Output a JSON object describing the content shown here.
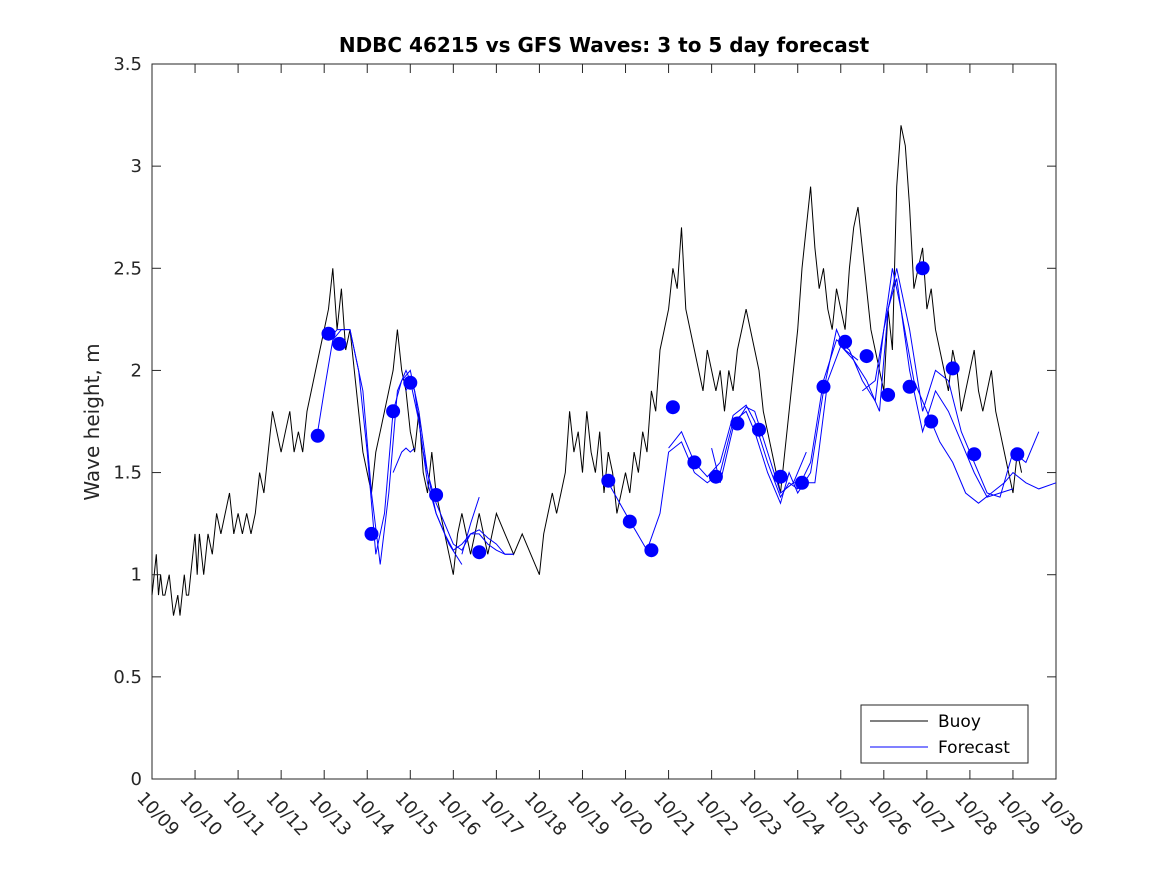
{
  "chart_data": {
    "type": "line",
    "title": "NDBC 46215 vs GFS Waves: 3 to 5 day forecast",
    "xlabel": "",
    "ylabel": "Wave height, m",
    "xlim": [
      0,
      21
    ],
    "ylim": [
      0,
      3.5
    ],
    "xticks": [
      0,
      1,
      2,
      3,
      4,
      5,
      6,
      7,
      8,
      9,
      10,
      11,
      12,
      13,
      14,
      15,
      16,
      17,
      18,
      19,
      20,
      21
    ],
    "xtick_labels": [
      "10/09",
      "10/10",
      "10/11",
      "10/12",
      "10/13",
      "10/14",
      "10/15",
      "10/16",
      "10/17",
      "10/18",
      "10/19",
      "10/20",
      "10/21",
      "10/22",
      "10/23",
      "10/24",
      "10/25",
      "10/26",
      "10/27",
      "10/28",
      "10/29",
      "10/30"
    ],
    "yticks": [
      0,
      0.5,
      1,
      1.5,
      2,
      2.5,
      3,
      3.5
    ],
    "ytick_labels": [
      "0",
      "0.5",
      "1",
      "1.5",
      "2",
      "2.5",
      "3",
      "3.5"
    ],
    "legend": {
      "placement": "bottom-right",
      "entries": [
        "Buoy",
        "Forecast"
      ]
    },
    "colors": {
      "buoy": "#000000",
      "forecast": "#0000ff",
      "axis": "#262626"
    },
    "series": [
      {
        "name": "Buoy",
        "x": [
          0.0,
          0.05,
          0.1,
          0.15,
          0.2,
          0.25,
          0.3,
          0.4,
          0.5,
          0.6,
          0.65,
          0.7,
          0.75,
          0.8,
          0.85,
          0.9,
          1.0,
          1.05,
          1.1,
          1.15,
          1.2,
          1.3,
          1.4,
          1.5,
          1.6,
          1.7,
          1.8,
          1.9,
          2.0,
          2.1,
          2.2,
          2.3,
          2.4,
          2.5,
          2.6,
          2.7,
          2.8,
          2.9,
          3.0,
          3.1,
          3.2,
          3.3,
          3.4,
          3.5,
          3.6,
          3.7,
          3.8,
          3.9,
          4.0,
          4.1,
          4.2,
          4.3,
          4.4,
          4.5,
          4.6,
          4.7,
          4.8,
          4.9,
          5.0,
          5.1,
          5.2,
          5.3,
          5.4,
          5.5,
          5.6,
          5.7,
          5.8,
          5.9,
          6.0,
          6.1,
          6.2,
          6.3,
          6.4,
          6.5,
          6.6,
          6.7,
          6.8,
          6.9,
          7.0,
          7.1,
          7.2,
          7.3,
          7.4,
          7.5,
          7.6,
          7.7,
          7.8,
          7.9,
          8.0,
          8.2,
          8.4,
          8.6,
          8.8,
          9.0,
          9.1,
          9.2,
          9.3,
          9.4,
          9.5,
          9.6,
          9.7,
          9.8,
          9.9,
          10.0,
          10.1,
          10.2,
          10.3,
          10.4,
          10.5,
          10.6,
          10.7,
          10.8,
          10.9,
          11.0,
          11.1,
          11.2,
          11.3,
          11.4,
          11.5,
          11.6,
          11.7,
          11.8,
          11.9,
          12.0,
          12.1,
          12.2,
          12.3,
          12.4,
          12.5,
          12.6,
          12.7,
          12.8,
          12.9,
          13.0,
          13.1,
          13.2,
          13.3,
          13.4,
          13.5,
          13.6,
          13.7,
          13.8,
          13.9,
          14.0,
          14.1,
          14.2,
          14.3,
          14.4,
          14.5,
          14.6,
          14.7,
          14.8,
          14.9,
          15.0,
          15.1,
          15.2,
          15.3,
          15.4,
          15.5,
          15.6,
          15.7,
          15.8,
          15.9,
          16.0,
          16.1,
          16.2,
          16.3,
          16.4,
          16.5,
          16.6,
          16.7,
          16.8,
          16.9,
          17.0,
          17.1,
          17.2,
          17.3,
          17.4,
          17.5,
          17.6,
          17.7,
          17.8,
          17.9,
          18.0,
          18.1,
          18.2,
          18.3,
          18.4,
          18.5,
          18.6,
          18.7,
          18.8,
          18.9,
          19.0,
          19.1,
          19.2,
          19.3,
          19.4,
          19.5,
          19.6,
          19.7,
          19.8,
          19.9,
          20.0,
          20.1,
          20.2
        ],
        "values": [
          0.9,
          1.0,
          1.1,
          0.9,
          1.0,
          0.9,
          0.9,
          1.0,
          0.8,
          0.9,
          0.8,
          0.9,
          1.0,
          0.9,
          0.9,
          1.0,
          1.2,
          1.0,
          1.2,
          1.1,
          1.0,
          1.2,
          1.1,
          1.3,
          1.2,
          1.3,
          1.4,
          1.2,
          1.3,
          1.2,
          1.3,
          1.2,
          1.3,
          1.5,
          1.4,
          1.6,
          1.8,
          1.7,
          1.6,
          1.7,
          1.8,
          1.6,
          1.7,
          1.6,
          1.8,
          1.9,
          2.0,
          2.1,
          2.2,
          2.3,
          2.5,
          2.2,
          2.4,
          2.1,
          2.2,
          2.0,
          1.8,
          1.6,
          1.5,
          1.4,
          1.6,
          1.7,
          1.8,
          1.9,
          2.0,
          2.2,
          2.0,
          1.9,
          1.7,
          1.6,
          1.8,
          1.5,
          1.4,
          1.6,
          1.4,
          1.3,
          1.2,
          1.1,
          1.0,
          1.2,
          1.3,
          1.2,
          1.1,
          1.2,
          1.3,
          1.2,
          1.1,
          1.2,
          1.3,
          1.2,
          1.1,
          1.2,
          1.1,
          1.0,
          1.2,
          1.3,
          1.4,
          1.3,
          1.4,
          1.5,
          1.8,
          1.6,
          1.7,
          1.5,
          1.8,
          1.6,
          1.5,
          1.7,
          1.4,
          1.6,
          1.5,
          1.3,
          1.4,
          1.5,
          1.4,
          1.6,
          1.5,
          1.7,
          1.6,
          1.9,
          1.8,
          2.1,
          2.2,
          2.3,
          2.5,
          2.4,
          2.7,
          2.3,
          2.2,
          2.1,
          2.0,
          1.9,
          2.1,
          2.0,
          1.9,
          2.0,
          1.8,
          2.0,
          1.9,
          2.1,
          2.2,
          2.3,
          2.2,
          2.1,
          2.0,
          1.8,
          1.7,
          1.6,
          1.5,
          1.4,
          1.6,
          1.8,
          2.0,
          2.2,
          2.5,
          2.7,
          2.9,
          2.6,
          2.4,
          2.5,
          2.3,
          2.2,
          2.4,
          2.3,
          2.2,
          2.5,
          2.7,
          2.8,
          2.6,
          2.4,
          2.2,
          2.1,
          2.0,
          1.9,
          2.3,
          2.1,
          2.9,
          3.2,
          3.1,
          2.8,
          2.4,
          2.5,
          2.6,
          2.3,
          2.4,
          2.2,
          2.1,
          2.0,
          1.9,
          2.1,
          2.0,
          1.8,
          1.9,
          2.0,
          2.1,
          1.9,
          1.8,
          1.9,
          2.0,
          1.8,
          1.7,
          1.6,
          1.5,
          1.4,
          1.6,
          1.5
        ]
      },
      {
        "name": "Forecast",
        "runs": [
          {
            "x": [
              3.85,
              4.0,
              4.2,
              4.4,
              4.6,
              4.8,
              5.0,
              5.2,
              5.4,
              5.6,
              5.8,
              6.0,
              6.2,
              6.4,
              6.6,
              6.8,
              7.0,
              7.2,
              7.4,
              7.6,
              7.8,
              8.0,
              8.2,
              8.4
            ],
            "values": [
              1.7,
              1.9,
              2.15,
              2.2,
              2.2,
              2.0,
              1.6,
              1.1,
              1.3,
              1.8,
              1.95,
              2.0,
              1.8,
              1.5,
              1.35,
              1.25,
              1.15,
              1.12,
              1.2,
              1.22,
              1.18,
              1.15,
              1.1,
              1.1
            ]
          },
          {
            "x": [
              5.9,
              6.0,
              6.2,
              6.4,
              6.6,
              6.8,
              7.0,
              7.2,
              7.4,
              7.6,
              7.8,
              8.0,
              8.2,
              8.4
            ],
            "values": [
              1.9,
              1.95,
              1.75,
              1.45,
              1.3,
              1.2,
              1.12,
              1.15,
              1.2,
              1.2,
              1.15,
              1.12,
              1.1,
              1.1
            ]
          },
          {
            "x": [
              4.1,
              4.3,
              4.6,
              4.9,
              5.1,
              5.3,
              5.5,
              5.7,
              5.9,
              6.1,
              6.3,
              6.6,
              6.9,
              7.2
            ],
            "values": [
              2.15,
              2.2,
              2.2,
              1.9,
              1.4,
              1.05,
              1.4,
              1.9,
              2.0,
              1.9,
              1.6,
              1.3,
              1.15,
              1.05
            ]
          },
          {
            "x": [
              5.6,
              5.8,
              5.9,
              6.0,
              6.1
            ],
            "values": [
              1.5,
              1.6,
              1.62,
              1.6,
              1.62
            ]
          },
          {
            "x": [
              7.2,
              7.4,
              7.6
            ],
            "values": [
              1.1,
              1.25,
              1.38
            ]
          },
          {
            "x": [
              10.6,
              11.0,
              11.5,
              11.8,
              12.0,
              12.3,
              12.6,
              12.9,
              13.2,
              13.5,
              13.8,
              14.0,
              14.3,
              14.6,
              14.8,
              15.0,
              15.3,
              15.6,
              15.9,
              16.1,
              16.4
            ],
            "values": [
              1.45,
              1.3,
              1.12,
              1.3,
              1.6,
              1.65,
              1.5,
              1.45,
              1.5,
              1.75,
              1.8,
              1.7,
              1.5,
              1.35,
              1.5,
              1.4,
              1.5,
              1.9,
              2.2,
              2.1,
              2.05
            ]
          },
          {
            "x": [
              12.0,
              12.3,
              12.6,
              12.9,
              13.2,
              13.5,
              13.8,
              14.0,
              14.3,
              14.6,
              14.8,
              15.0,
              15.3,
              15.6,
              15.9,
              16.2,
              16.5,
              16.8,
              17.0,
              17.2,
              17.4,
              17.7,
              18.0,
              18.3,
              18.6,
              18.9,
              19.2,
              19.5,
              19.8,
              20.0,
              20.3,
              20.6,
              21.0
            ],
            "values": [
              1.62,
              1.7,
              1.55,
              1.48,
              1.55,
              1.78,
              1.83,
              1.75,
              1.55,
              1.38,
              1.45,
              1.42,
              1.55,
              1.95,
              2.15,
              2.1,
              1.95,
              1.85,
              2.2,
              2.5,
              2.3,
              1.95,
              1.8,
              1.65,
              1.55,
              1.4,
              1.35,
              1.4,
              1.45,
              1.5,
              1.45,
              1.42,
              1.45
            ]
          },
          {
            "x": [
              13.0,
              13.2,
              13.5,
              13.8,
              14.0,
              14.3,
              14.6,
              14.9,
              15.1,
              15.4,
              15.7,
              16.0,
              16.3,
              16.6,
              16.9,
              17.1,
              17.3,
              17.6,
              17.9,
              18.2,
              18.5,
              18.8,
              19.1,
              19.4,
              19.7,
              20.0
            ],
            "values": [
              1.62,
              1.45,
              1.72,
              1.82,
              1.8,
              1.6,
              1.4,
              1.45,
              1.45,
              1.45,
              1.95,
              2.12,
              2.05,
              1.95,
              1.8,
              2.3,
              2.45,
              2.0,
              1.7,
              1.9,
              1.8,
              1.65,
              1.5,
              1.38,
              1.4,
              1.42
            ]
          },
          {
            "x": [
              16.5,
              16.8,
              17.0,
              17.3,
              17.6,
              17.9,
              18.2,
              18.5,
              18.8,
              19.1,
              19.4,
              19.7,
              20.0,
              20.3,
              20.6
            ],
            "values": [
              1.9,
              1.95,
              2.2,
              2.5,
              2.2,
              1.8,
              2.0,
              1.95,
              1.7,
              1.55,
              1.4,
              1.38,
              1.6,
              1.55,
              1.7
            ]
          },
          {
            "x": [
              14.9,
              15.0,
              15.2
            ],
            "values": [
              1.45,
              1.5,
              1.6
            ]
          }
        ],
        "markers": {
          "x": [
            3.85,
            4.1,
            4.35,
            5.1,
            5.6,
            6.0,
            6.6,
            7.6,
            10.6,
            11.1,
            11.6,
            12.1,
            12.6,
            13.1,
            13.6,
            14.1,
            14.6,
            15.1,
            15.6,
            16.1,
            16.6,
            17.1,
            17.6,
            17.9,
            18.1,
            18.6,
            19.1,
            20.1
          ],
          "values": [
            1.68,
            2.18,
            2.13,
            1.2,
            1.8,
            1.94,
            1.39,
            1.11,
            1.46,
            1.26,
            1.12,
            1.82,
            1.55,
            1.48,
            1.74,
            1.71,
            1.48,
            1.45,
            1.92,
            2.14,
            2.07,
            1.88,
            1.92,
            2.5,
            1.75,
            2.01,
            1.59,
            1.59
          ]
        }
      }
    ]
  }
}
